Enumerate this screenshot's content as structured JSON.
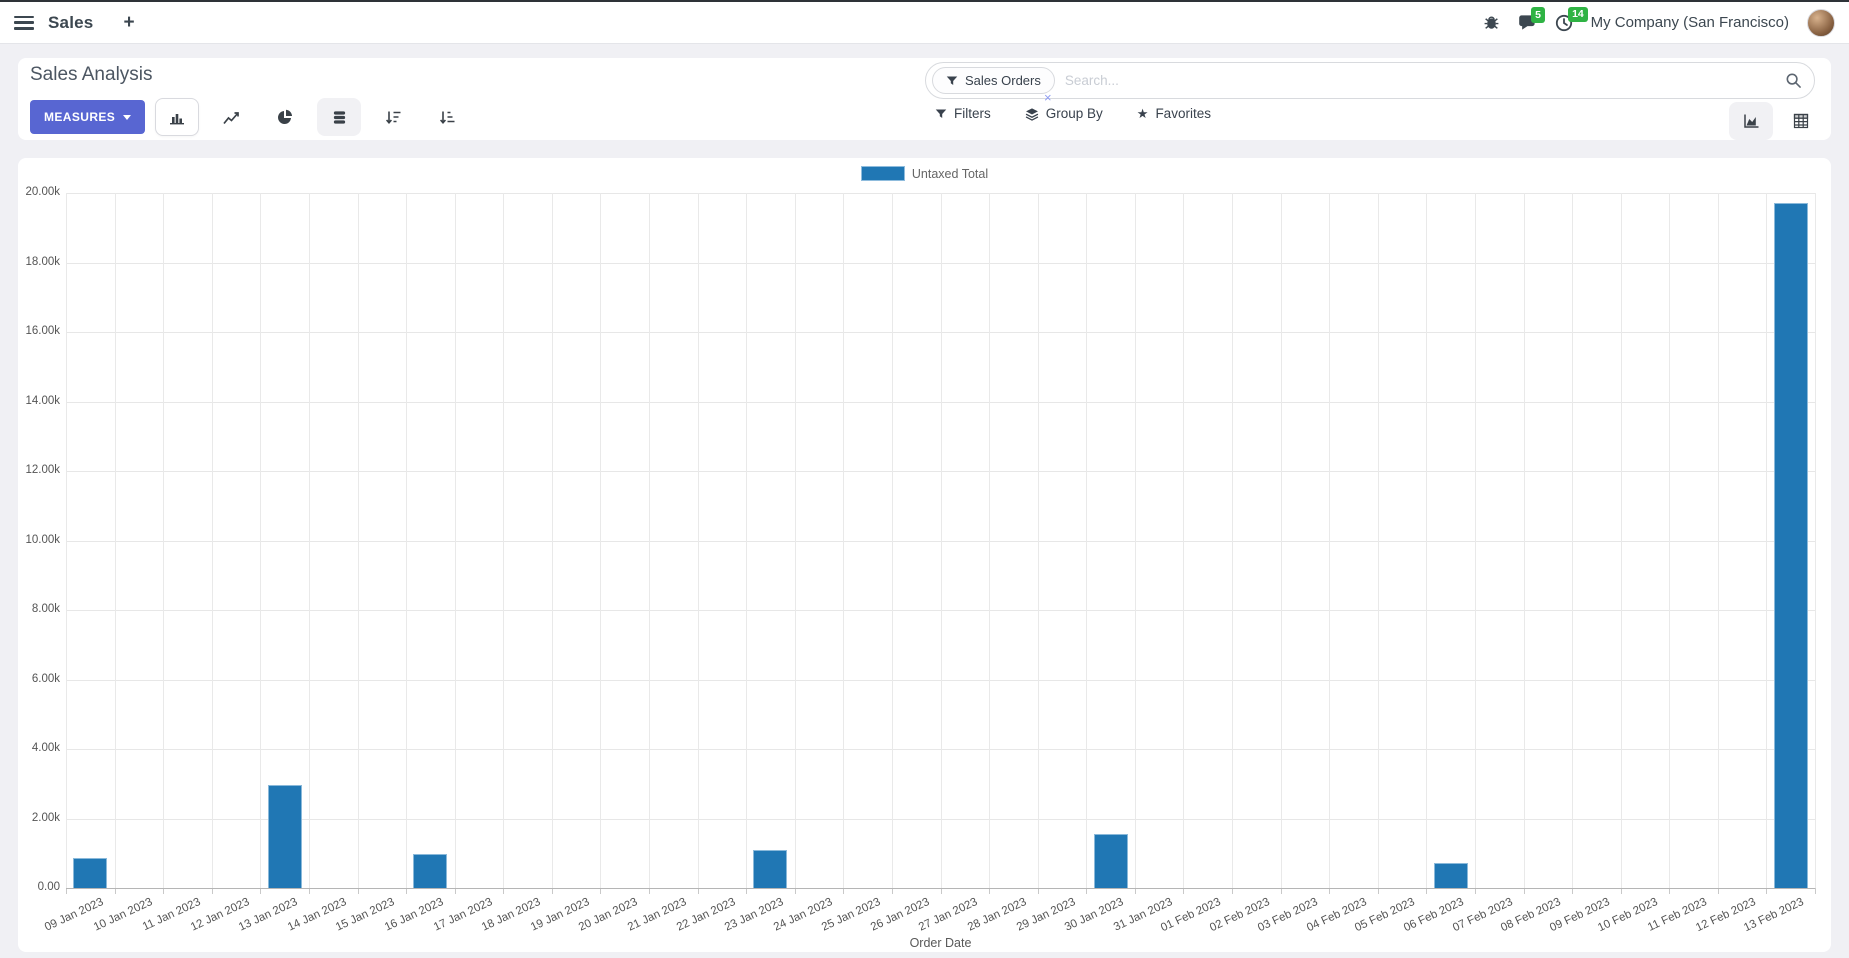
{
  "navbar": {
    "app_name": "Sales",
    "plus_label": "+",
    "messages_badge": "5",
    "activities_badge": "14",
    "company": "My Company (San Francisco)"
  },
  "control_panel": {
    "title": "Sales Analysis",
    "measures_label": "MEASURES",
    "search": {
      "facet": "Sales Orders",
      "facet_remove": "×",
      "placeholder": "Search...",
      "value": ""
    },
    "filters_label": "Filters",
    "group_by_label": "Group By",
    "favorites_label": "Favorites"
  },
  "icons": {
    "hamburger-icon": "three-bars-menu",
    "plus-icon": "+",
    "bug-icon": "debug-bug",
    "messages-icon": "speech-bubble",
    "activities-icon": "clock",
    "bar-chart-icon": "vertical-bars",
    "line-chart-icon": "polyline",
    "pie-chart-icon": "pie-with-slice",
    "stacked-icon": "stacked-discs",
    "sort-desc-icon": "down-arrow-wide-to-short",
    "sort-asc-icon": "down-arrow-short-to-wide",
    "filter-icon": "funnel",
    "group-by-icon": "layers",
    "favorites-icon": "star",
    "search-icon": "magnifier",
    "graph-view-icon": "area-chart",
    "pivot-view-icon": "table-grid",
    "caret-down-icon": "triangle-down",
    "avatar": "user-photo"
  },
  "colors": {
    "accent_button": "#5866d2",
    "bar_fill": "#2077b4",
    "bar_border": "#8ab9da",
    "badge_green": "#2fb344",
    "page_background": "#f0f0f4"
  },
  "chart_data": {
    "type": "bar",
    "title": "",
    "legend_position": "top-center",
    "grid": true,
    "series": [
      {
        "name": "Untaxed Total",
        "color": "#2077b4"
      }
    ],
    "categories": [
      "09 Jan 2023",
      "10 Jan 2023",
      "11 Jan 2023",
      "12 Jan 2023",
      "13 Jan 2023",
      "14 Jan 2023",
      "15 Jan 2023",
      "16 Jan 2023",
      "17 Jan 2023",
      "18 Jan 2023",
      "19 Jan 2023",
      "20 Jan 2023",
      "21 Jan 2023",
      "22 Jan 2023",
      "23 Jan 2023",
      "24 Jan 2023",
      "25 Jan 2023",
      "26 Jan 2023",
      "27 Jan 2023",
      "28 Jan 2023",
      "29 Jan 2023",
      "30 Jan 2023",
      "31 Jan 2023",
      "01 Feb 2023",
      "02 Feb 2023",
      "03 Feb 2023",
      "04 Feb 2023",
      "05 Feb 2023",
      "06 Feb 2023",
      "07 Feb 2023",
      "08 Feb 2023",
      "09 Feb 2023",
      "10 Feb 2023",
      "11 Feb 2023",
      "12 Feb 2023",
      "13 Feb 2023"
    ],
    "values": [
      860,
      0,
      0,
      0,
      2950,
      0,
      0,
      980,
      0,
      0,
      0,
      0,
      0,
      0,
      1100,
      0,
      0,
      0,
      0,
      0,
      0,
      1550,
      0,
      0,
      0,
      0,
      0,
      0,
      720,
      0,
      0,
      0,
      0,
      0,
      0,
      19700
    ],
    "xlabel": "Order Date",
    "ylabel": "",
    "ylim": [
      0,
      20000
    ],
    "y_ticks": [
      "20.00k",
      "18.00k",
      "16.00k",
      "14.00k",
      "12.00k",
      "10.00k",
      "8.00k",
      "6.00k",
      "4.00k",
      "2.00k",
      "0.00"
    ]
  }
}
